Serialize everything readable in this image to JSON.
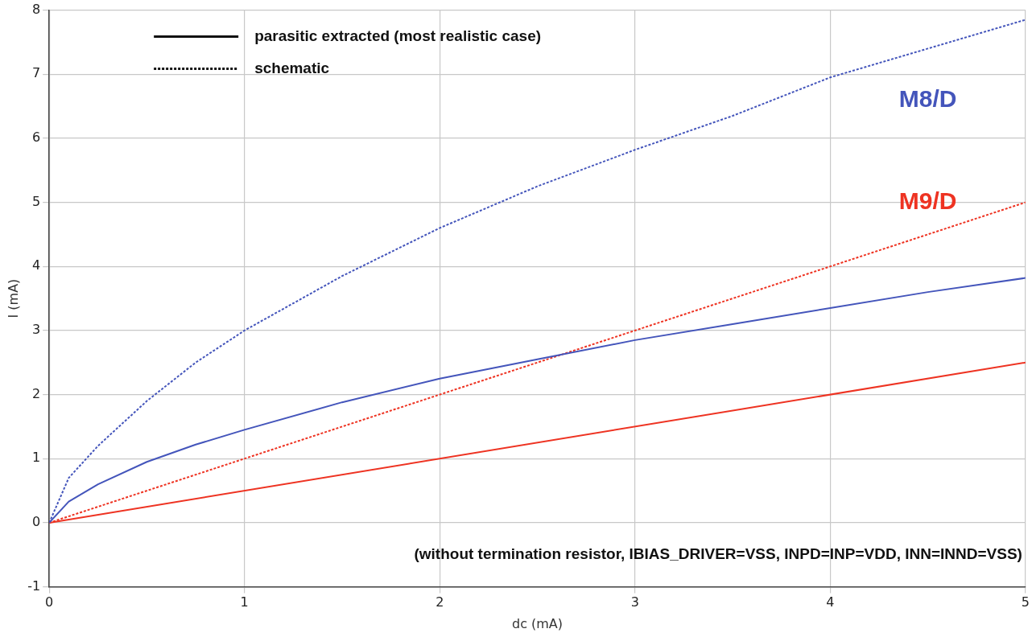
{
  "chart_data": {
    "type": "line",
    "xlabel": "dc (mA)",
    "ylabel": "I (mA)",
    "xlim": [
      0,
      5
    ],
    "xticks": [
      0,
      1,
      2,
      3,
      4,
      5
    ],
    "ylim": [
      -1,
      8
    ],
    "yticks": [
      -1,
      0,
      1,
      2,
      3,
      4,
      5,
      6,
      7,
      8
    ],
    "grid": true,
    "marker": "none",
    "series": [
      {
        "color": "#4455bb",
        "line_style": "dotted",
        "x": [
          0,
          0.1,
          0.25,
          0.5,
          0.75,
          1,
          1.5,
          2,
          2.5,
          3,
          3.5,
          4,
          4.5,
          5
        ],
        "values": [
          0,
          0.7,
          1.2,
          1.9,
          2.5,
          3.0,
          3.85,
          4.6,
          5.25,
          5.82,
          6.35,
          6.95,
          7.4,
          7.85
        ]
      },
      {
        "color": "#4455bb",
        "line_style": "solid",
        "x": [
          0,
          0.1,
          0.25,
          0.5,
          0.75,
          1,
          1.5,
          2,
          2.5,
          3,
          3.5,
          4,
          4.5,
          5
        ],
        "values": [
          0,
          0.33,
          0.6,
          0.95,
          1.22,
          1.45,
          1.88,
          2.25,
          2.55,
          2.85,
          3.1,
          3.35,
          3.6,
          3.82
        ]
      },
      {
        "color": "#ee3322",
        "line_style": "dotted",
        "x": [
          0,
          5
        ],
        "values": [
          0,
          5
        ]
      },
      {
        "color": "#ee3322",
        "line_style": "solid",
        "x": [
          0,
          5
        ],
        "values": [
          0,
          2.5
        ]
      }
    ],
    "annotations": [
      "parasitic extracted (most realistic case)",
      "schematic",
      "M8/D",
      "M9/D",
      "(without termination resistor, IBIAS_DRIVER=VSS, INPD=INP=VDD, INN=INND=VSS)"
    ]
  }
}
